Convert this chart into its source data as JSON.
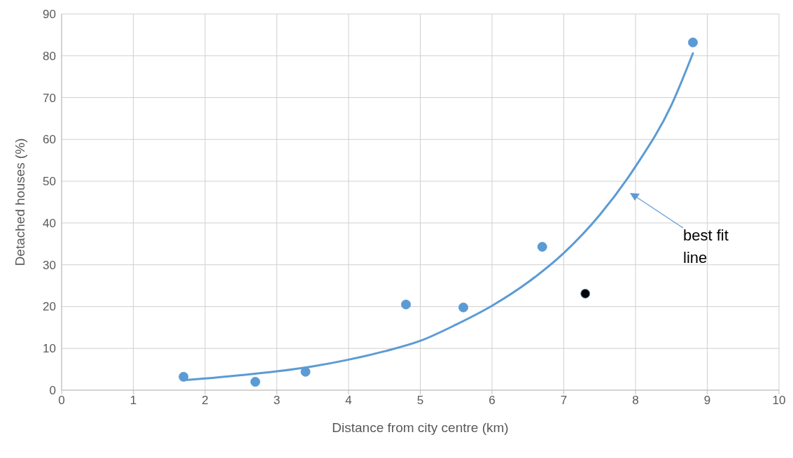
{
  "chart_data": {
    "type": "scatter",
    "xlabel": "Distance from city centre (km)",
    "ylabel": "Detached houses (%)",
    "xlim": [
      0,
      10
    ],
    "xticks": [
      0,
      1,
      2,
      3,
      4,
      5,
      6,
      7,
      8,
      9,
      10
    ],
    "ylim": [
      0,
      90
    ],
    "yticks": [
      0,
      10,
      20,
      30,
      40,
      50,
      60,
      70,
      80,
      90
    ],
    "grid": true,
    "marker": "circle",
    "series": [
      {
        "x": [
          1.7,
          2.7,
          3.4,
          4.8,
          5.6,
          6.7,
          7.3,
          8.8
        ],
        "values": [
          3.2,
          2.0,
          4.4,
          20.5,
          19.8,
          34.3,
          23.1,
          83.2
        ],
        "colors": [
          "#5b9bd5",
          "#5b9bd5",
          "#5b9bd5",
          "#5b9bd5",
          "#5b9bd5",
          "#5b9bd5",
          "#000000",
          "#5b9bd5"
        ]
      },
      {
        "type": "line",
        "color": "#5b9bd5",
        "marker": "none",
        "line_style": "solid",
        "x": [
          1.7,
          2,
          2.5,
          3,
          3.5,
          4,
          4.5,
          5,
          5.5,
          6,
          6.5,
          7,
          7.5,
          8,
          8.5,
          8.8
        ],
        "values": [
          2.4,
          2.8,
          3.6,
          4.5,
          5.7,
          7.3,
          9.3,
          11.8,
          15.7,
          20.2,
          25.8,
          32.8,
          41.9,
          53.5,
          68.2,
          80.6
        ]
      }
    ],
    "annotations": [
      "best fit line"
    ]
  }
}
